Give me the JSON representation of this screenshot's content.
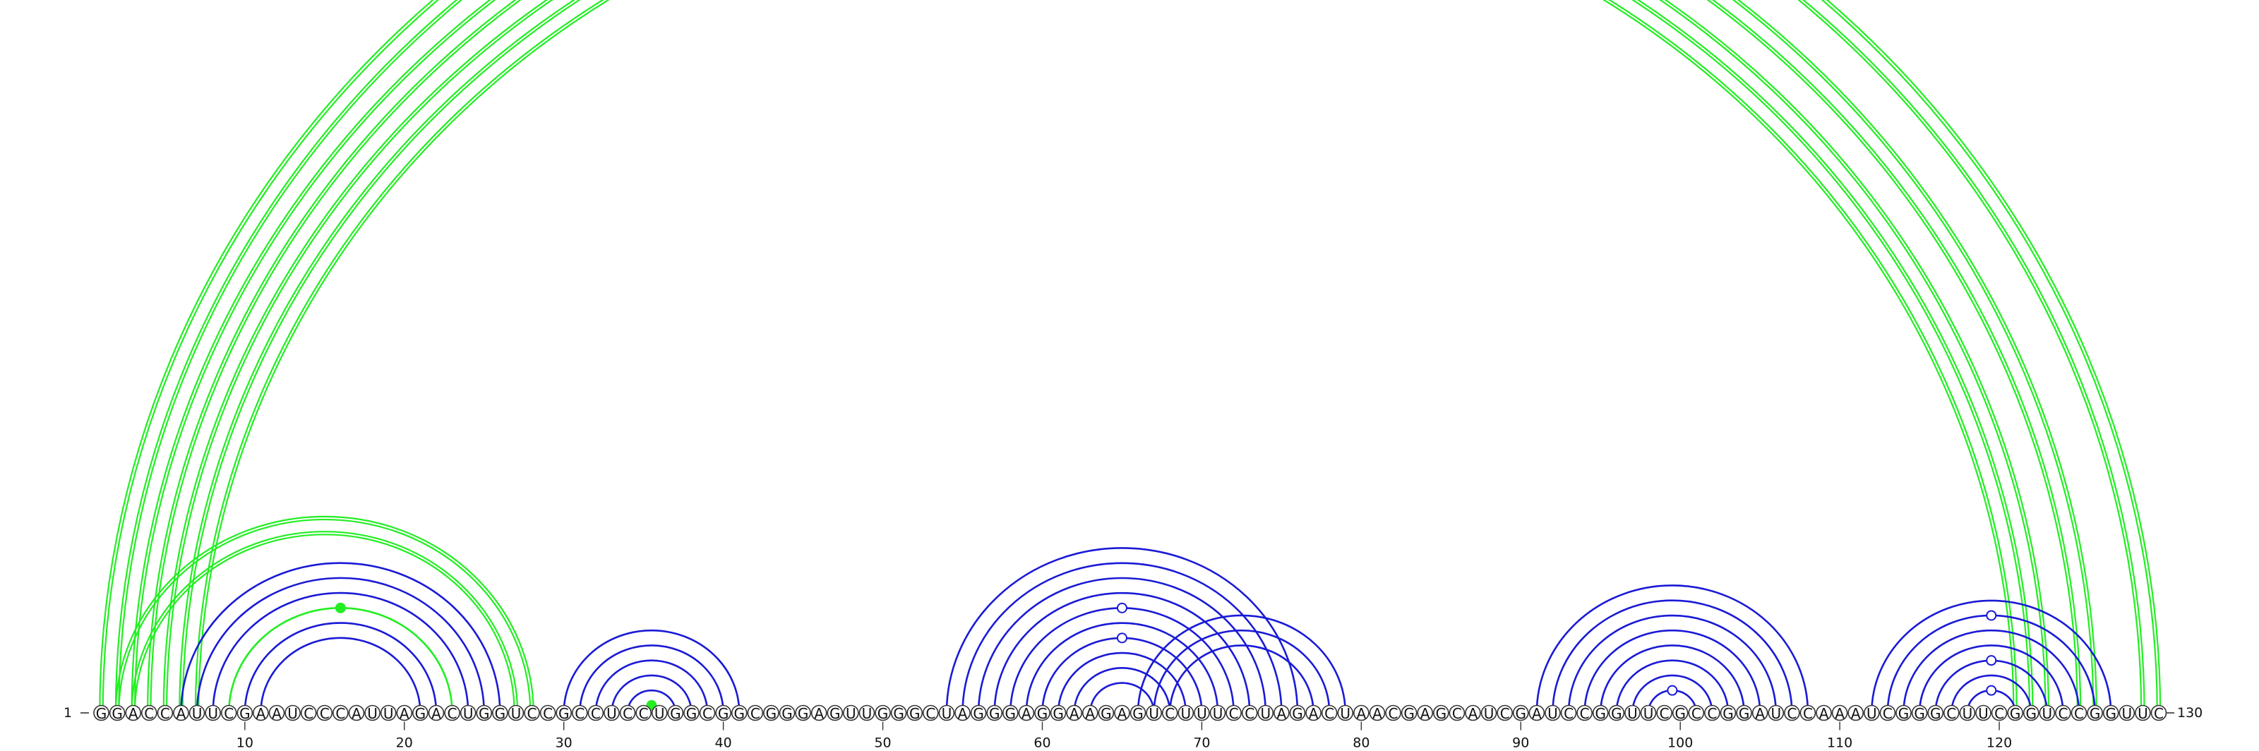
{
  "sequence": "GGACCAUUCGAAUCCCAUUAGACUGGUCCGCCUCCUGGCGGCGGGAGUUGGGCUAGGGAGGAAGAGUCUUUCCUAGACUAACGAGCAUCGAUCCGGUUCGCCGGAUCCAAAUCGGGCUUCGGUCCGGUUC",
  "labels": {
    "start": "1",
    "end": "130"
  },
  "ticks": [
    "10",
    "20",
    "30",
    "40",
    "50",
    "60",
    "70",
    "80",
    "90",
    "100",
    "110",
    "120"
  ],
  "colors": {
    "green": "#22ee22",
    "blue": "#1a1ad6"
  },
  "chart_data": {
    "type": "arc-diagram",
    "length": 130,
    "ticks": [
      10,
      20,
      30,
      40,
      50,
      60,
      70,
      80,
      90,
      100,
      110,
      120
    ],
    "arcs": [
      {
        "i": 1,
        "j": 130,
        "color": "green",
        "double": true,
        "mark": "open"
      },
      {
        "i": 2,
        "j": 129,
        "color": "green",
        "double": true
      },
      {
        "i": 3,
        "j": 126,
        "color": "green",
        "double": true
      },
      {
        "i": 4,
        "j": 125,
        "color": "green",
        "double": true
      },
      {
        "i": 5,
        "j": 123,
        "color": "green",
        "double": true
      },
      {
        "i": 6,
        "j": 122,
        "color": "green",
        "double": true
      },
      {
        "i": 7,
        "j": 121,
        "color": "green",
        "double": true
      },
      {
        "i": 2,
        "j": 28,
        "color": "green",
        "double": true
      },
      {
        "i": 3,
        "j": 27,
        "color": "green",
        "double": true
      },
      {
        "i": 6,
        "j": 26,
        "color": "blue"
      },
      {
        "i": 7,
        "j": 25,
        "color": "blue"
      },
      {
        "i": 8,
        "j": 24,
        "color": "blue"
      },
      {
        "i": 9,
        "j": 23,
        "color": "green",
        "mark": "filled"
      },
      {
        "i": 10,
        "j": 22,
        "color": "blue"
      },
      {
        "i": 11,
        "j": 21,
        "color": "blue"
      },
      {
        "i": 30,
        "j": 41,
        "color": "blue"
      },
      {
        "i": 31,
        "j": 40,
        "color": "blue"
      },
      {
        "i": 32,
        "j": 39,
        "color": "blue"
      },
      {
        "i": 33,
        "j": 38,
        "color": "blue"
      },
      {
        "i": 34,
        "j": 37,
        "color": "blue"
      },
      {
        "i": 35,
        "j": 36,
        "color": "green",
        "mark": "filled"
      },
      {
        "i": 54,
        "j": 76,
        "color": "blue"
      },
      {
        "i": 55,
        "j": 75,
        "color": "blue"
      },
      {
        "i": 56,
        "j": 74,
        "color": "blue"
      },
      {
        "i": 57,
        "j": 73,
        "color": "blue"
      },
      {
        "i": 58,
        "j": 72,
        "color": "blue",
        "mark": "open"
      },
      {
        "i": 59,
        "j": 71,
        "color": "blue"
      },
      {
        "i": 60,
        "j": 70,
        "color": "blue",
        "mark": "open"
      },
      {
        "i": 61,
        "j": 69,
        "color": "blue"
      },
      {
        "i": 62,
        "j": 68,
        "color": "blue"
      },
      {
        "i": 63,
        "j": 67,
        "color": "blue"
      },
      {
        "i": 66,
        "j": 79,
        "color": "blue"
      },
      {
        "i": 67,
        "j": 78,
        "color": "blue"
      },
      {
        "i": 68,
        "j": 77,
        "color": "blue"
      },
      {
        "i": 91,
        "j": 108,
        "color": "blue"
      },
      {
        "i": 92,
        "j": 107,
        "color": "blue"
      },
      {
        "i": 93,
        "j": 106,
        "color": "blue"
      },
      {
        "i": 94,
        "j": 105,
        "color": "blue"
      },
      {
        "i": 95,
        "j": 104,
        "color": "blue"
      },
      {
        "i": 96,
        "j": 103,
        "color": "blue"
      },
      {
        "i": 97,
        "j": 102,
        "color": "blue"
      },
      {
        "i": 98,
        "j": 101,
        "color": "blue",
        "mark": "open"
      },
      {
        "i": 112,
        "j": 127,
        "color": "blue"
      },
      {
        "i": 113,
        "j": 126,
        "color": "blue",
        "mark": "open"
      },
      {
        "i": 114,
        "j": 125,
        "color": "blue"
      },
      {
        "i": 115,
        "j": 124,
        "color": "blue"
      },
      {
        "i": 116,
        "j": 123,
        "color": "blue",
        "mark": "open"
      },
      {
        "i": 117,
        "j": 122,
        "color": "blue"
      },
      {
        "i": 118,
        "j": 121,
        "color": "blue",
        "mark": "open"
      }
    ]
  }
}
